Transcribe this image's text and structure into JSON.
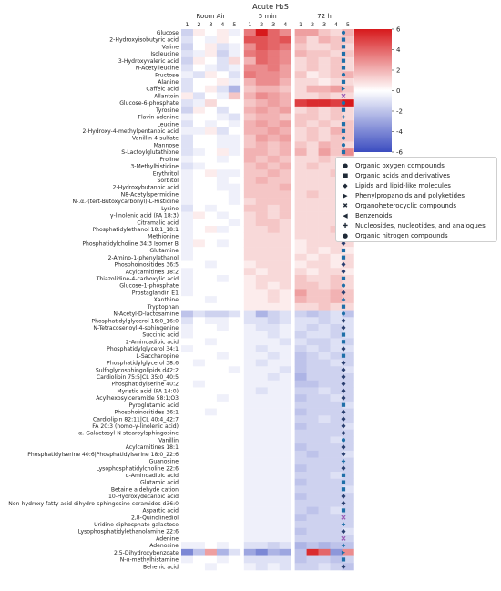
{
  "chart_data": {
    "type": "heatmap",
    "title": "Acute H₂S",
    "groups": [
      {
        "label": "Room Air",
        "columns": [
          "1",
          "2",
          "3",
          "4",
          "5"
        ]
      },
      {
        "label": "5 min",
        "columns": [
          "1",
          "2",
          "3",
          "4"
        ]
      },
      {
        "label": "72 h",
        "columns": [
          "1",
          "2",
          "3",
          "4",
          "5"
        ]
      }
    ],
    "rows": [
      "Glucose",
      "2-Hydroxyisobutyric acid",
      "Valine",
      "Isoleucine",
      "3-Hydroxyvaleric acid",
      "N-Acetylleucine",
      "Fructose",
      "Alanine",
      "Caffeic acid",
      "Allantoin",
      "Glucose-6-phosphate",
      "Tyrosine",
      "Flavin adenine",
      "Leucine",
      "2-Hydroxy-4-methylpentanoic acid",
      "Vanillin-4-sulfate",
      "Mannose",
      "S-Lactoylglutathione",
      "Proline",
      "3-Methylhistidine",
      "Erythritol",
      "Sorbitol",
      "2-Hydroxybutanoic acid",
      "N8-Acetylspermidine",
      "N-.α.-(tert-Butoxycarbonyl)-L-Histidine",
      "Lysine",
      "γ-linolenic acid (FA 18:3)",
      "Citramalic acid",
      "Phosphatidylethanol 18:1_18:1",
      "Methionine",
      "Phosphatidylcholine 34:3 Isomer B",
      "Glutamine",
      "2-Amino-1-phenylethanol",
      "Phosphoinositides 36:5",
      "Acylcarnitines 18:2",
      "Thiazolidine-4-carboxylic acid",
      "Glucose-1-phosphate",
      "Prostaglandin E1",
      "Xanthine",
      "Tryptophan",
      "N-Acetyl-D-lactosamine",
      "Phosphatidylglycerol 16:0_16:0",
      "N-Tetracosenoyl-4-sphingenine",
      "Succinic acid",
      "2-Aminoadipic acid",
      "Phosphatidylglycerol 34:1",
      "L-Saccharopine",
      "Phosphatidylglycerol 38:6",
      "Sulfoglycosphingolipids d42:2",
      "Cardiolipin 75:5|CL 35:0_40:5",
      "Phosphatidylserine 40:2",
      "Myristic acid (FA 14:0)",
      "Acylhexosylceramide 58:1;O3",
      "Pyroglutamic acid",
      "Phosphoinositides 36:1",
      "Cardiolipin 82:11|CL 40:4_42:7",
      "FA 20:3 (homo-γ-linolenic acid)",
      "α.-Galactosyl-N-stearoylsphingosine",
      "Vanillin",
      "Acylcarnitines 18:1",
      "Phosphatidylserine 40:6|Phosphatidylserine 18:0_22:6",
      "Guanosine",
      "Lysophosphatidylcholine 22:6",
      "α-Aminoadipic acid",
      "Glutamic acid",
      "Betaine aldehyde cation",
      "10-Hydroxydecanoic acid",
      "Non-hydroxy-fatty acid dihydro-sphingosine ceramides d36:0",
      "Aspartic acid",
      "2,8-Quinolinediol",
      "Uridine diphosphate galactose",
      "Lysophosphatidylethanolamine 22:6",
      "Adenine",
      "Adenosine",
      "2,5-Dihydroxybenzoate",
      "N-α-methylhistamine",
      "Behenic acid"
    ],
    "row_class": [
      0,
      1,
      1,
      1,
      1,
      1,
      0,
      1,
      3,
      4,
      0,
      1,
      6,
      1,
      1,
      0,
      0,
      8,
      1,
      1,
      0,
      0,
      1,
      8,
      1,
      1,
      2,
      1,
      2,
      1,
      2,
      1,
      8,
      2,
      2,
      1,
      0,
      2,
      6,
      1,
      0,
      2,
      2,
      1,
      1,
      2,
      1,
      2,
      2,
      2,
      2,
      2,
      2,
      1,
      2,
      2,
      2,
      2,
      0,
      2,
      2,
      6,
      2,
      1,
      1,
      8,
      2,
      2,
      1,
      4,
      6,
      2,
      4,
      6,
      3,
      8,
      2
    ],
    "colorbar": {
      "min": -6,
      "max": 6,
      "ticks": [
        "-6",
        "-4",
        "-2",
        "0",
        "2",
        "4",
        "6"
      ],
      "colors": [
        "#3b4cc0",
        "#ffffff",
        "#d7191c"
      ]
    },
    "legend_title": "",
    "legend": [
      {
        "label": "Organic oxygen compounds",
        "marker": "●"
      },
      {
        "label": "Organic acids and derivatives",
        "marker": "■"
      },
      {
        "label": "Lipids and lipid-like molecules",
        "marker": "◆"
      },
      {
        "label": "Phenylpropanoids and polyketides",
        "marker": "▶"
      },
      {
        "label": "Organoheterocyclic compounds",
        "marker": "✖"
      },
      {
        "label": "Benzenoids",
        "marker": "◀"
      },
      {
        "label": "Nucleosides, nucleotides, and analogues",
        "marker": "✚"
      },
      {
        "label": "Organic nitrogen compounds",
        "marker": "●"
      }
    ],
    "class_colors": [
      "#1f6fa8",
      "#1f6fa8",
      "#2a3f70",
      "#1f6fa8",
      "#9a5bb5",
      "#1f6fa8",
      "#1f6fa8",
      "#1f6fa8",
      "#1f6fa8"
    ],
    "class_shapes": [
      "circle",
      "square",
      "diamond",
      "tri-right",
      "x",
      "tri-left",
      "plus",
      "circle",
      "square"
    ],
    "values": [
      [
        -1.5,
        0.5,
        0,
        0.5,
        -0.5,
        3.5,
        6,
        4,
        3,
        2.5,
        2.5,
        1.5,
        1,
        2
      ],
      [
        -1,
        0,
        -0.5,
        0.5,
        0,
        4.5,
        4.5,
        4,
        4.5,
        2,
        1,
        2,
        1.5,
        1.5
      ],
      [
        -1.5,
        0,
        0.5,
        -1,
        -0.5,
        3,
        4.5,
        4,
        3.5,
        1.5,
        1,
        1,
        1.5,
        1
      ],
      [
        -1,
        -0.5,
        0.5,
        -1.5,
        -0.5,
        3.5,
        4,
        3.5,
        3,
        2,
        1.5,
        1.5,
        1,
        1.5
      ],
      [
        -1.5,
        0.5,
        0,
        -1,
        1,
        2,
        4,
        3.5,
        3,
        1,
        1.5,
        1,
        1.5,
        1
      ],
      [
        -1,
        0,
        -0.5,
        -1,
        -0.5,
        3,
        3,
        3.5,
        2.5,
        1,
        1.5,
        1,
        1.5,
        1
      ],
      [
        -0.5,
        -1,
        0.5,
        0,
        -1,
        3.5,
        3,
        3,
        2.5,
        1.5,
        0.5,
        1,
        1.5,
        2
      ],
      [
        -1,
        0,
        0,
        0.5,
        -0.5,
        2,
        3,
        3,
        2,
        1,
        1,
        0.5,
        1,
        1
      ],
      [
        -1,
        0,
        0.5,
        -1,
        -2.5,
        1.5,
        2,
        2,
        1.5,
        1,
        2,
        2,
        2.5,
        1.5
      ],
      [
        0.5,
        -1,
        0,
        -0.5,
        1.5,
        2,
        3,
        2.5,
        2,
        1,
        1,
        1.5,
        1,
        1
      ],
      [
        -1,
        -0.5,
        1,
        0,
        0,
        1.5,
        2,
        2.5,
        2,
        5,
        5.5,
        5.5,
        5,
        6
      ],
      [
        -1.5,
        0.5,
        0,
        -1,
        0,
        2,
        2.5,
        2,
        2.5,
        1,
        1.5,
        1,
        1.5,
        1
      ],
      [
        -0.5,
        0,
        0,
        -0.5,
        -1,
        1.5,
        2,
        2,
        1.5,
        1.5,
        1.5,
        1,
        1.5,
        1
      ],
      [
        -1,
        0,
        -0.5,
        0,
        -0.5,
        2,
        2.5,
        2,
        2.5,
        1.5,
        1,
        1.5,
        1,
        1.5
      ],
      [
        -0.5,
        -0.5,
        0.5,
        -1,
        0,
        2,
        2,
        2.5,
        2,
        1,
        1.5,
        1,
        2,
        1.5
      ],
      [
        -1,
        0,
        0,
        -0.5,
        -0.5,
        1.5,
        2.5,
        2,
        2.5,
        1,
        1.5,
        1,
        1.5,
        1.5
      ],
      [
        -1,
        0,
        0,
        -0.5,
        -0.5,
        1.5,
        2,
        1.5,
        2,
        1.5,
        1,
        2,
        1.5,
        1
      ],
      [
        -1,
        -0.5,
        0,
        0.5,
        -0.5,
        2,
        2,
        1.5,
        2,
        2,
        1,
        2.5,
        1.5,
        3
      ],
      [
        -0.5,
        0,
        0,
        -0.5,
        0,
        2,
        1.5,
        2,
        1.5,
        1,
        1,
        1.5,
        1,
        1
      ],
      [
        -1,
        -0.5,
        0,
        0,
        0,
        1.5,
        2,
        1.5,
        2,
        1,
        1.5,
        1,
        1,
        1.5
      ],
      [
        -0.5,
        0,
        0.5,
        -0.5,
        -0.5,
        1.5,
        1.5,
        2,
        1.5,
        1,
        1,
        1,
        1.5,
        1
      ],
      [
        -0.5,
        0,
        0,
        -0.5,
        0,
        1.5,
        2,
        1.5,
        1.5,
        1,
        1,
        1,
        1,
        1
      ],
      [
        -0.5,
        0,
        0,
        -0.5,
        -0.5,
        1.5,
        1.5,
        1.5,
        2,
        1,
        1,
        1,
        1,
        1
      ],
      [
        -0.5,
        0,
        0,
        0,
        -0.5,
        1.5,
        1.5,
        1.5,
        1.5,
        1,
        1.5,
        1,
        1,
        1
      ],
      [
        -0.5,
        0,
        0,
        0,
        -0.5,
        1,
        1.5,
        1.5,
        1.5,
        1,
        1,
        1,
        1,
        1
      ],
      [
        -1,
        0,
        -0.5,
        0,
        0,
        1.5,
        1.5,
        1,
        1.5,
        1,
        1,
        1,
        1,
        1.5
      ],
      [
        -0.5,
        0.5,
        0,
        -0.5,
        0,
        1,
        1.5,
        1,
        1.5,
        1,
        1,
        1,
        1,
        1
      ],
      [
        -0.5,
        0,
        0,
        0,
        -0.5,
        1,
        1.5,
        1.5,
        1,
        1,
        1,
        1,
        1,
        1
      ],
      [
        -0.5,
        0,
        0.5,
        -0.5,
        0,
        1,
        1,
        1.5,
        1,
        1,
        1,
        1,
        1.5,
        1
      ],
      [
        -0.5,
        0,
        0,
        0,
        0,
        1,
        1,
        1,
        1,
        1,
        1,
        1,
        1,
        1
      ],
      [
        -0.5,
        0.5,
        0,
        -0.5,
        0,
        1,
        1,
        1,
        1,
        0.5,
        1,
        1,
        1,
        1
      ],
      [
        -0.5,
        0,
        0,
        0,
        0,
        1,
        1,
        1,
        1,
        0.5,
        1,
        0.5,
        1,
        0.5
      ],
      [
        -0.5,
        0,
        0,
        0,
        0,
        1,
        1,
        1,
        1,
        1,
        0.5,
        1,
        0.5,
        1
      ],
      [
        0,
        0,
        -0.5,
        0,
        0,
        0.5,
        1,
        1,
        1,
        0.5,
        1,
        1,
        0.5,
        1
      ],
      [
        -0.5,
        0,
        0,
        0,
        0,
        1,
        0.5,
        1,
        1,
        1,
        0.5,
        1,
        1,
        0.5
      ],
      [
        -0.5,
        0,
        0,
        -0.5,
        0,
        0.5,
        1,
        1,
        1,
        1.5,
        1,
        1,
        1.5,
        1
      ],
      [
        -0.5,
        0,
        0,
        0,
        0,
        0.5,
        1,
        0.5,
        1,
        1.5,
        1.5,
        1,
        1.5,
        1
      ],
      [
        -0.5,
        0,
        0,
        0,
        0,
        0.5,
        0.5,
        1,
        0.5,
        2.5,
        1.5,
        1.5,
        2,
        1.5
      ],
      [
        0,
        0,
        -0.5,
        0,
        0,
        0.5,
        0.5,
        1,
        0.5,
        2,
        1.5,
        1.5,
        2,
        1.5
      ],
      [
        0,
        0,
        0,
        0,
        0,
        0.5,
        0.5,
        0.5,
        0.5,
        1,
        1,
        1.5,
        1,
        1
      ],
      [
        -2,
        -1,
        -1.5,
        -1.5,
        -1,
        -1,
        -2.5,
        -1.5,
        -1,
        -1.5,
        -2,
        -1.5,
        -1,
        -2
      ],
      [
        -1,
        0,
        -0.5,
        -0.5,
        0,
        -1,
        -1,
        -1.5,
        -1,
        -1,
        -1,
        -1.5,
        -1,
        -1
      ],
      [
        -0.5,
        0,
        0,
        -0.5,
        0,
        -0.5,
        -1,
        -1,
        -0.5,
        -1,
        -1.5,
        -1,
        -1.5,
        -1
      ],
      [
        -0.5,
        0,
        0,
        0,
        0,
        -0.5,
        -0.5,
        -1,
        -0.5,
        -1.5,
        -1,
        -1,
        -1.5,
        -1
      ],
      [
        0,
        0,
        -0.5,
        0,
        0,
        -0.5,
        -0.5,
        -0.5,
        -1,
        -1,
        -1.5,
        -1.5,
        -1,
        -1.5
      ],
      [
        -0.5,
        0,
        0,
        0,
        0,
        -0.5,
        -1,
        -0.5,
        -0.5,
        -1.5,
        -1,
        -1.5,
        -1,
        -1
      ],
      [
        0,
        0,
        0,
        -0.5,
        0,
        -0.5,
        -0.5,
        -1,
        -0.5,
        -2,
        -1.5,
        -1,
        -1.5,
        -1.5
      ],
      [
        0,
        -0.5,
        0,
        0,
        0,
        -0.5,
        -1,
        -0.5,
        -0.5,
        -2,
        -1.5,
        -1.5,
        -1,
        -1.5
      ],
      [
        0,
        0,
        0,
        0,
        -0.5,
        -0.5,
        -0.5,
        -0.5,
        -1,
        -2,
        -1.5,
        -1.5,
        -1.5,
        -1
      ],
      [
        0,
        0,
        0,
        0,
        0,
        -0.5,
        -0.5,
        -1,
        -0.5,
        -2.5,
        -1.5,
        -1.5,
        -1.5,
        -1.5
      ],
      [
        0,
        -0.5,
        0,
        0,
        0,
        -0.5,
        -0.5,
        -0.5,
        -0.5,
        -2,
        -2,
        -1.5,
        -1.5,
        -1.5
      ],
      [
        0,
        0,
        0,
        0,
        0,
        -0.5,
        -1,
        -0.5,
        -0.5,
        -1.5,
        -1.5,
        -1,
        -1.5,
        -1.5
      ],
      [
        0,
        0,
        0,
        -0.5,
        0,
        -0.5,
        -0.5,
        -0.5,
        -0.5,
        -2,
        -1.5,
        -1.5,
        -1,
        -1.5
      ],
      [
        0,
        0,
        0,
        0,
        0,
        -0.5,
        -0.5,
        -0.5,
        -0.5,
        -1.5,
        -1.5,
        -1.5,
        -1.5,
        -1
      ],
      [
        0,
        0,
        -0.5,
        0,
        0,
        -0.5,
        -0.5,
        -0.5,
        -0.5,
        -2,
        -1.5,
        -1.5,
        -1.5,
        -1.5
      ],
      [
        0,
        0,
        0,
        0,
        0,
        -0.5,
        -0.5,
        -0.5,
        -0.5,
        -1.5,
        -1.5,
        -1,
        -1.5,
        -1.5
      ],
      [
        0,
        0,
        0,
        0,
        0,
        -0.5,
        -0.5,
        -0.5,
        -0.5,
        -2,
        -1.5,
        -1.5,
        -1.5,
        -1
      ],
      [
        0,
        0,
        0,
        0,
        0,
        -0.5,
        -0.5,
        -0.5,
        -0.5,
        -1.5,
        -1.5,
        -1.5,
        -1.5,
        -1.5
      ],
      [
        0,
        0,
        0,
        0,
        0,
        -0.5,
        -0.5,
        -0.5,
        -0.5,
        -1.5,
        -1.5,
        -1.5,
        -1,
        -1.5
      ],
      [
        0,
        0,
        0,
        0,
        0,
        -0.5,
        -0.5,
        -0.5,
        -0.5,
        -2,
        -1.5,
        -1.5,
        -1.5,
        -1.5
      ],
      [
        0,
        0,
        0,
        0,
        0,
        -0.5,
        -0.5,
        -0.5,
        -0.5,
        -1.5,
        -2,
        -1.5,
        -1.5,
        -1
      ],
      [
        0,
        0,
        0,
        0,
        0,
        -0.5,
        -0.5,
        -0.5,
        -0.5,
        -1.5,
        -1.5,
        -1.5,
        -1.5,
        -1.5
      ],
      [
        0,
        0,
        0,
        0,
        0,
        -0.5,
        -0.5,
        -0.5,
        -0.5,
        -2,
        -1.5,
        -1.5,
        -1.5,
        -1.5
      ],
      [
        0,
        0,
        0,
        0,
        0,
        -0.5,
        -0.5,
        -0.5,
        -0.5,
        -1.5,
        -1.5,
        -1.5,
        -1,
        -1.5
      ],
      [
        0,
        0,
        0,
        0,
        0,
        -0.5,
        -0.5,
        -0.5,
        -0.5,
        -2,
        -1.5,
        -1.5,
        -1.5,
        -1.5
      ],
      [
        0,
        0,
        0,
        0,
        0,
        -0.5,
        -0.5,
        -0.5,
        -0.5,
        -1.5,
        -1.5,
        -1.5,
        -1.5,
        -1
      ],
      [
        0,
        0,
        0,
        0,
        0,
        -0.5,
        -0.5,
        -0.5,
        -0.5,
        -2,
        -1.5,
        -1.5,
        -1.5,
        -1.5
      ],
      [
        0,
        0,
        0,
        0,
        0,
        -0.5,
        -0.5,
        -0.5,
        -0.5,
        -1.5,
        -1.5,
        -1.5,
        -1.5,
        -1.5
      ],
      [
        0,
        0,
        0,
        0,
        0,
        -0.5,
        -0.5,
        -0.5,
        -0.5,
        -1.5,
        -2,
        -1.5,
        -1,
        -1.5
      ],
      [
        0,
        0,
        0,
        0,
        0,
        -0.5,
        -0.5,
        -0.5,
        -0.5,
        -2,
        -1.5,
        -1.5,
        -1.5,
        -1.5
      ],
      [
        0,
        0,
        0,
        0,
        0,
        -0.5,
        -0.5,
        -0.5,
        -0.5,
        -1.5,
        -1.5,
        -1.5,
        -1.5,
        -1.5
      ],
      [
        0,
        0,
        0,
        0,
        0,
        -0.5,
        -0.5,
        -0.5,
        -0.5,
        -2,
        -1.5,
        -1.5,
        -1.5,
        -1
      ],
      [
        0,
        0,
        0,
        0,
        0,
        -0.5,
        -0.5,
        -0.5,
        -0.5,
        -1.5,
        -1.5,
        -1.5,
        -1.5,
        -1.5
      ],
      [
        -0.5,
        -0.5,
        0,
        -0.5,
        0,
        -1,
        -1,
        -1.5,
        -1,
        -2.5,
        -2,
        -2.5,
        -2,
        -2
      ],
      [
        -4,
        -2,
        2.5,
        -2.5,
        -1,
        -3,
        -4,
        -2.5,
        -3,
        -2,
        5.5,
        4,
        -3.5,
        3
      ],
      [
        -0.5,
        0,
        0,
        -0.5,
        0,
        -1,
        -1,
        -1,
        -1,
        -2,
        -1.5,
        -1.5,
        -2,
        -1.5
      ],
      [
        0,
        0,
        -0.5,
        0,
        0,
        -0.5,
        -1,
        -0.5,
        -1,
        -1.5,
        -1.5,
        -1,
        -1.5,
        -2
      ]
    ]
  }
}
